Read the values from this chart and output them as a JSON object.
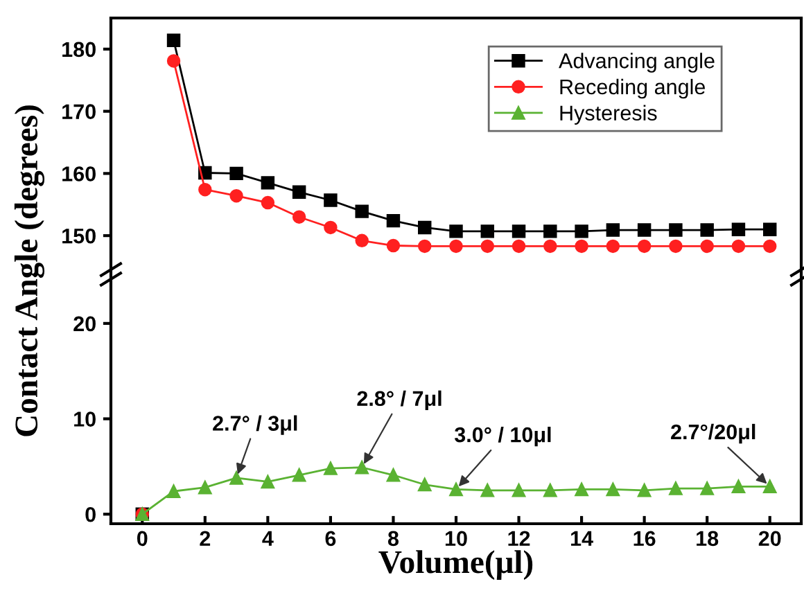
{
  "chart_data": [
    {
      "type": "line",
      "ylabel": "Contact Angle (degrees)",
      "x": [
        1,
        2,
        3,
        4,
        5,
        6,
        7,
        8,
        9,
        10,
        11,
        12,
        13,
        14,
        15,
        16,
        17,
        18,
        19,
        20
      ],
      "series": [
        {
          "name": "Advancing angle",
          "color": "#000000",
          "marker": "square",
          "values": [
            181.4,
            160.1,
            160.0,
            158.5,
            157.0,
            155.7,
            153.9,
            152.4,
            151.3,
            150.7,
            150.7,
            150.7,
            150.7,
            150.7,
            150.9,
            150.9,
            150.9,
            150.9,
            151.0,
            151.0
          ]
        },
        {
          "name": "Receding angle",
          "color": "#ff2020",
          "marker": "circle",
          "values": [
            178.1,
            157.4,
            156.4,
            155.3,
            153.0,
            151.3,
            149.2,
            148.4,
            148.3,
            148.3,
            148.3,
            148.3,
            148.3,
            148.3,
            148.3,
            148.3,
            148.3,
            148.3,
            148.3,
            148.3
          ]
        }
      ],
      "xlim": [
        -1,
        21
      ],
      "ylim": [
        144,
        185
      ],
      "yticks": [
        150,
        160,
        170,
        180
      ],
      "tick_labels": "y",
      "legend": "top right",
      "grid": false,
      "line_style": "solid"
    },
    {
      "type": "line",
      "xlabel": "Volume(μl)",
      "x": [
        0,
        1,
        2,
        3,
        4,
        5,
        6,
        7,
        8,
        9,
        10,
        11,
        12,
        13,
        14,
        15,
        16,
        17,
        18,
        19,
        20
      ],
      "series": [
        {
          "name": "Advancing angle",
          "color": "#000000",
          "marker": "square",
          "values": [
            0,
            null,
            null,
            null,
            null,
            null,
            null,
            null,
            null,
            null,
            null,
            null,
            null,
            null,
            null,
            null,
            null,
            null,
            null,
            null,
            null
          ]
        },
        {
          "name": "Receding angle",
          "color": "#ff2020",
          "marker": "circle",
          "values": [
            0,
            null,
            null,
            null,
            null,
            null,
            null,
            null,
            null,
            null,
            null,
            null,
            null,
            null,
            null,
            null,
            null,
            null,
            null,
            null,
            null
          ]
        },
        {
          "name": "Hysteresis",
          "color": "#5ab232",
          "marker": "triangle",
          "values": [
            0,
            2.4,
            2.8,
            3.8,
            3.4,
            4.1,
            4.8,
            4.9,
            4.1,
            3.1,
            2.6,
            2.5,
            2.5,
            2.5,
            2.6,
            2.6,
            2.5,
            2.7,
            2.7,
            2.9,
            2.9
          ]
        }
      ],
      "xlim": [
        -1,
        21
      ],
      "xticks": [
        0,
        2,
        4,
        6,
        8,
        10,
        12,
        14,
        16,
        18,
        20
      ],
      "ylim": [
        -1,
        25
      ],
      "yticks": [
        0,
        10,
        20
      ],
      "grid": false,
      "line_style": "solid",
      "annotations": [
        {
          "text": "2.7° / 3μl",
          "x": 3,
          "y": 3.8
        },
        {
          "text": "2.8° / 7μl",
          "x": 7,
          "y": 4.9
        },
        {
          "text": "3.0° / 10μl",
          "x": 10,
          "y": 2.6
        },
        {
          "text": "2.7°/20μl",
          "x": 20,
          "y": 2.9
        }
      ]
    }
  ]
}
